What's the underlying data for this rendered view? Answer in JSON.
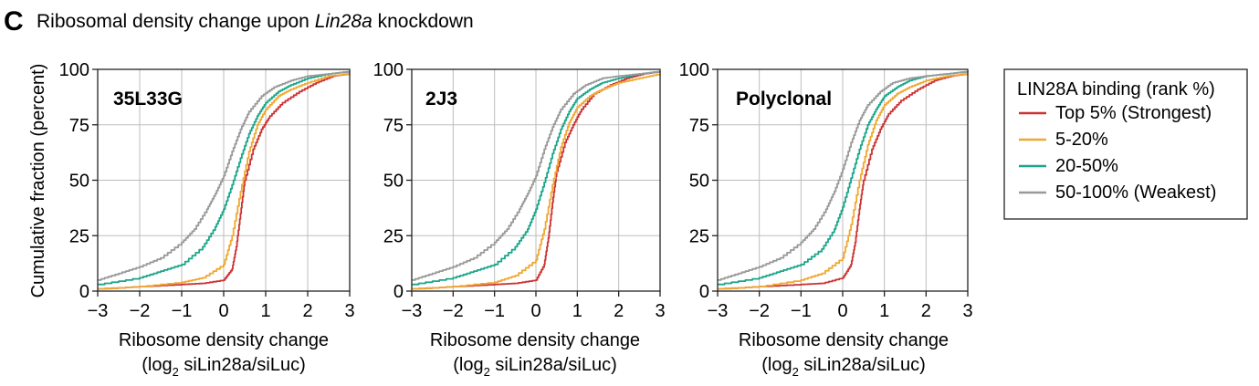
{
  "panel_letter": "C",
  "title_before": "Ribosomal density change upon ",
  "title_italic": "Lin28a",
  "title_after": " knockdown",
  "ylabel": "Cumulative fraction (percent)",
  "xlabel_line1": "Ribosome density change",
  "xlabel_line2_prefix": "(log",
  "xlabel_line2_sub": "2",
  "xlabel_line2_suffix": " siLin28a/siLuc)",
  "legend": {
    "title": "LIN28A binding (rank %)",
    "placement": "right"
  },
  "colors": {
    "top5": "#cc3333",
    "r5_20": "#f0a830",
    "r20_50": "#1aa68a",
    "r50_100": "#999999"
  },
  "chart_data": [
    {
      "type": "line",
      "panel_label": "35L33G",
      "xlim": [
        -3,
        3
      ],
      "ylim": [
        0,
        100
      ],
      "xticks": [
        -3,
        -2,
        -1,
        0,
        1,
        2,
        3
      ],
      "yticks": [
        0,
        25,
        50,
        75,
        100
      ],
      "grid": true,
      "series": [
        {
          "name": "Top 5% (Strongest)",
          "color": "#cc3333",
          "x": [
            -3,
            -2,
            -1,
            -0.5,
            0,
            0.2,
            0.3,
            0.4,
            0.5,
            0.7,
            0.9,
            1.1,
            1.4,
            1.8,
            2.2,
            2.6,
            3
          ],
          "y": [
            1,
            2,
            3,
            3.5,
            5,
            10,
            20,
            35,
            50,
            64,
            73,
            79,
            85,
            90,
            94,
            97,
            98
          ]
        },
        {
          "name": "5-20%",
          "color": "#f0a830",
          "x": [
            -3,
            -2,
            -1,
            -0.5,
            0,
            0.2,
            0.4,
            0.6,
            0.8,
            1,
            1.3,
            1.6,
            2,
            2.5,
            3
          ],
          "y": [
            1,
            2,
            4,
            6,
            12,
            25,
            45,
            63,
            75,
            82,
            88,
            91,
            94,
            97,
            98
          ]
        },
        {
          "name": "20-50%",
          "color": "#1aa68a",
          "x": [
            -3,
            -2,
            -1.5,
            -1,
            -0.5,
            -0.2,
            0,
            0.2,
            0.4,
            0.6,
            0.8,
            1,
            1.3,
            1.6,
            2,
            2.5,
            3
          ],
          "y": [
            3,
            6,
            9,
            12,
            20,
            29,
            37,
            48,
            60,
            71,
            79,
            85,
            90,
            93,
            96,
            98,
            99
          ]
        },
        {
          "name": "50-100% (Weakest)",
          "color": "#999999",
          "x": [
            -3,
            -2.5,
            -2,
            -1.5,
            -1,
            -0.7,
            -0.4,
            -0.2,
            0,
            0.2,
            0.4,
            0.6,
            0.9,
            1.2,
            1.6,
            2,
            2.5,
            3
          ],
          "y": [
            5,
            8,
            11,
            15,
            22,
            28,
            37,
            44,
            52,
            63,
            73,
            81,
            88,
            92,
            95,
            97,
            98,
            99
          ]
        }
      ]
    },
    {
      "type": "line",
      "panel_label": "2J3",
      "xlim": [
        -3,
        3
      ],
      "ylim": [
        0,
        100
      ],
      "xticks": [
        -3,
        -2,
        -1,
        0,
        1,
        2,
        3
      ],
      "yticks": [
        0,
        25,
        50,
        75,
        100
      ],
      "grid": true,
      "series": [
        {
          "name": "Top 5% (Strongest)",
          "color": "#cc3333",
          "x": [
            -3,
            -2,
            -1,
            -0.5,
            0,
            0.2,
            0.3,
            0.4,
            0.5,
            0.7,
            0.9,
            1.1,
            1.4,
            1.8,
            2.2,
            2.6,
            3
          ],
          "y": [
            1,
            2,
            3,
            3.5,
            5,
            12,
            24,
            40,
            54,
            67,
            75,
            82,
            89,
            93,
            96,
            98,
            99
          ]
        },
        {
          "name": "5-20%",
          "color": "#f0a830",
          "x": [
            -3,
            -2,
            -1,
            -0.5,
            0,
            0.2,
            0.4,
            0.6,
            0.8,
            1,
            1.3,
            1.6,
            2,
            2.5,
            3
          ],
          "y": [
            1,
            2,
            4,
            7,
            14,
            28,
            48,
            65,
            76,
            83,
            88,
            91,
            94,
            96,
            98
          ]
        },
        {
          "name": "20-50%",
          "color": "#1aa68a",
          "x": [
            -3,
            -2,
            -1.5,
            -1,
            -0.5,
            -0.2,
            0,
            0.2,
            0.4,
            0.6,
            0.8,
            1,
            1.3,
            1.6,
            2,
            2.5,
            3
          ],
          "y": [
            3,
            6,
            9,
            12,
            20,
            28,
            37,
            49,
            62,
            73,
            81,
            87,
            91,
            94,
            96,
            98,
            99
          ]
        },
        {
          "name": "50-100% (Weakest)",
          "color": "#999999",
          "x": [
            -3,
            -2.5,
            -2,
            -1.5,
            -1,
            -0.7,
            -0.4,
            -0.2,
            0,
            0.2,
            0.4,
            0.6,
            0.9,
            1.2,
            1.6,
            2,
            2.5,
            3
          ],
          "y": [
            5,
            8,
            11,
            15,
            22,
            28,
            37,
            44,
            52,
            64,
            74,
            82,
            89,
            93,
            96,
            97,
            98,
            99
          ]
        }
      ]
    },
    {
      "type": "line",
      "panel_label": "Polyclonal",
      "xlim": [
        -3,
        3
      ],
      "ylim": [
        0,
        100
      ],
      "xticks": [
        -3,
        -2,
        -1,
        0,
        1,
        2,
        3
      ],
      "yticks": [
        0,
        25,
        50,
        75,
        100
      ],
      "grid": true,
      "series": [
        {
          "name": "Top 5% (Strongest)",
          "color": "#cc3333",
          "x": [
            -3,
            -2,
            -1,
            -0.5,
            0,
            0.2,
            0.3,
            0.4,
            0.5,
            0.7,
            0.9,
            1.1,
            1.4,
            1.8,
            2.2,
            2.6,
            3
          ],
          "y": [
            1,
            2,
            3,
            3.5,
            6,
            12,
            22,
            37,
            50,
            64,
            73,
            80,
            86,
            91,
            95,
            97,
            98
          ]
        },
        {
          "name": "5-20%",
          "color": "#f0a830",
          "x": [
            -3,
            -2,
            -1,
            -0.5,
            0,
            0.2,
            0.4,
            0.6,
            0.8,
            1,
            1.3,
            1.6,
            2,
            2.5,
            3
          ],
          "y": [
            1,
            2,
            5,
            8,
            15,
            30,
            50,
            66,
            77,
            84,
            89,
            92,
            95,
            97,
            98
          ]
        },
        {
          "name": "20-50%",
          "color": "#1aa68a",
          "x": [
            -3,
            -2,
            -1.5,
            -1,
            -0.5,
            -0.2,
            0,
            0.2,
            0.4,
            0.6,
            0.8,
            1,
            1.3,
            1.6,
            2,
            2.5,
            3
          ],
          "y": [
            3,
            6,
            9,
            12,
            19,
            28,
            38,
            51,
            64,
            75,
            82,
            88,
            92,
            95,
            97,
            98,
            99
          ]
        },
        {
          "name": "50-100% (Weakest)",
          "color": "#999999",
          "x": [
            -3,
            -2.5,
            -2,
            -1.5,
            -1,
            -0.7,
            -0.4,
            -0.2,
            0,
            0.2,
            0.4,
            0.6,
            0.9,
            1.2,
            1.6,
            2,
            2.5,
            3
          ],
          "y": [
            5,
            8,
            11,
            15,
            22,
            28,
            37,
            45,
            55,
            67,
            77,
            84,
            90,
            94,
            96,
            97,
            98,
            99
          ]
        }
      ]
    }
  ]
}
